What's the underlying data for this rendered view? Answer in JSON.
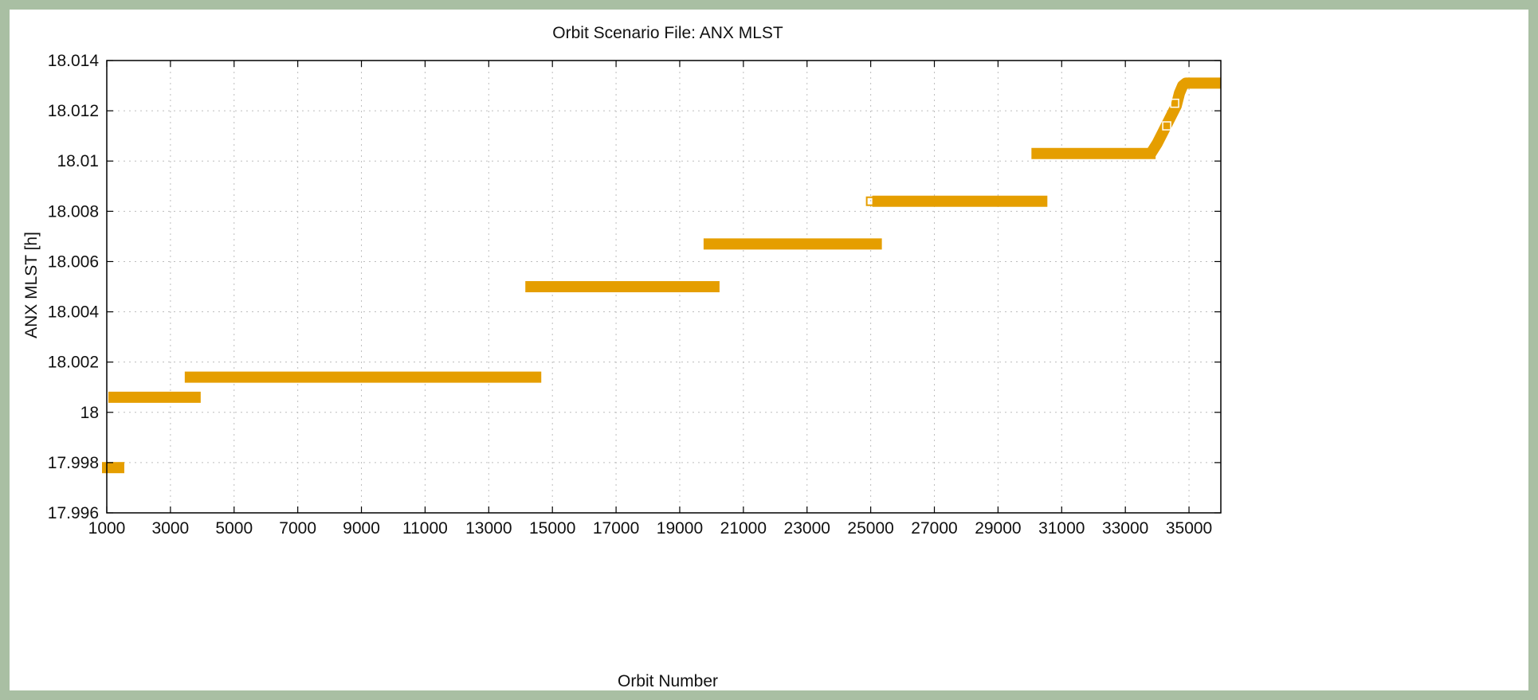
{
  "chart_data": {
    "type": "scatter",
    "title": "Orbit Scenario File: ANX MLST",
    "xlabel": "Orbit Number",
    "ylabel": "ANX MLST [h]",
    "xlim": [
      1000,
      36000
    ],
    "ylim": [
      17.996,
      18.014
    ],
    "x_ticks": [
      1000,
      3000,
      5000,
      7000,
      9000,
      11000,
      13000,
      15000,
      17000,
      19000,
      21000,
      23000,
      25000,
      27000,
      29000,
      31000,
      33000,
      35000
    ],
    "y_ticks": [
      17.996,
      17.998,
      18,
      18.002,
      18.004,
      18.006,
      18.008,
      18.01,
      18.012,
      18.014
    ],
    "y_tick_labels": [
      "17.996",
      "17.998",
      "18",
      "18.002",
      "18.004",
      "18.006",
      "18.008",
      "18.01",
      "18.012",
      "18.014"
    ],
    "grid": true,
    "marker": "open-square",
    "color": "#e59e00",
    "segments": [
      {
        "x_start": 1000,
        "x_end": 1400,
        "y": 17.9978
      },
      {
        "x_start": 1200,
        "x_end": 3800,
        "y": 18.0006
      },
      {
        "x_start": 3600,
        "x_end": 14500,
        "y": 18.0014
      },
      {
        "x_start": 14300,
        "x_end": 20100,
        "y": 18.005
      },
      {
        "x_start": 19900,
        "x_end": 25200,
        "y": 18.0067
      },
      {
        "x_start": 25000,
        "x_end": 25000,
        "y": 18.0084
      },
      {
        "x_start": 25200,
        "x_end": 30400,
        "y": 18.0084
      },
      {
        "x_start": 30200,
        "x_end": 33800,
        "y": 18.0103
      }
    ],
    "curve": {
      "x": [
        33800,
        34000,
        34200,
        34400,
        34600,
        34700,
        34800,
        34900,
        35100,
        35400,
        35700,
        36000
      ],
      "y": [
        18.0103,
        18.0107,
        18.0112,
        18.0117,
        18.0122,
        18.0127,
        18.013,
        18.0131,
        18.0131,
        18.0131,
        18.0131,
        18.0131
      ]
    }
  }
}
